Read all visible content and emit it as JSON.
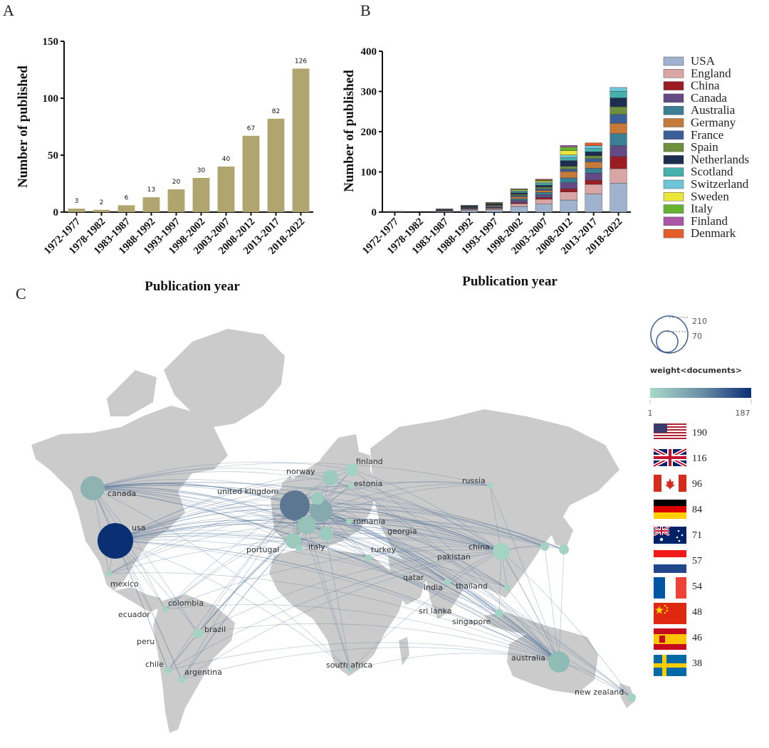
{
  "panels": {
    "a": "A",
    "b": "B",
    "c": "C"
  },
  "chart_data": [
    {
      "type": "bar",
      "panel": "A",
      "categories": [
        "1972-1977",
        "1978-1982",
        "1983-1987",
        "1988-1992",
        "1993-1997",
        "1998-2002",
        "2003-2007",
        "2008-2012",
        "2013-2017",
        "2018-2022"
      ],
      "values": [
        3,
        2,
        6,
        13,
        20,
        30,
        40,
        67,
        82,
        126
      ],
      "xlabel": "Publication year",
      "ylabel": "Number of published",
      "ylim": [
        0,
        150
      ],
      "yticks": [
        0,
        50,
        100,
        150
      ],
      "color": "#b0a56f",
      "grid": false
    },
    {
      "type": "bar",
      "stacked": true,
      "panel": "B",
      "categories": [
        "1972-1977",
        "1978-1982",
        "1983-1987",
        "1988-1992",
        "1993-1997",
        "1998-2002",
        "2003-2007",
        "2008-2012",
        "2013-2017",
        "2018-2022"
      ],
      "xlabel": "Publication year",
      "ylabel": "Number of published",
      "ylim": [
        0,
        400
      ],
      "yticks": [
        0,
        100,
        200,
        300,
        400
      ],
      "legend_position": "right",
      "series": [
        {
          "name": "USA",
          "color": "#9fb3cf",
          "values": [
            1,
            0,
            2,
            5,
            6,
            14,
            20,
            30,
            45,
            72
          ]
        },
        {
          "name": "England",
          "color": "#d9a5a5",
          "values": [
            0,
            0,
            1,
            2,
            3,
            7,
            12,
            20,
            24,
            36
          ]
        },
        {
          "name": "China",
          "color": "#9c1c24",
          "values": [
            0,
            0,
            0,
            0,
            1,
            2,
            4,
            8,
            10,
            30
          ]
        },
        {
          "name": "Canada",
          "color": "#634a85",
          "values": [
            1,
            0,
            1,
            2,
            2,
            6,
            7,
            15,
            18,
            27
          ]
        },
        {
          "name": "Australia",
          "color": "#3a7f96",
          "values": [
            0,
            0,
            1,
            1,
            2,
            4,
            6,
            12,
            12,
            30
          ]
        },
        {
          "name": "Germany",
          "color": "#c57a39",
          "values": [
            0,
            0,
            1,
            1,
            2,
            5,
            5,
            16,
            16,
            26
          ]
        },
        {
          "name": "France",
          "color": "#3d5f99",
          "values": [
            0,
            0,
            1,
            1,
            1,
            3,
            4,
            6,
            8,
            22
          ]
        },
        {
          "name": "Spain",
          "color": "#6e8f3e",
          "values": [
            0,
            0,
            0,
            1,
            1,
            3,
            4,
            7,
            7,
            19
          ]
        },
        {
          "name": "Netherlands",
          "color": "#1c2d4f",
          "values": [
            0,
            0,
            1,
            2,
            2,
            4,
            5,
            14,
            10,
            22
          ]
        },
        {
          "name": "Scotland",
          "color": "#45b1ad",
          "values": [
            0,
            0,
            0,
            1,
            1,
            3,
            4,
            7,
            8,
            16
          ]
        },
        {
          "name": "Switzerland",
          "color": "#6cc6d6",
          "values": [
            0,
            0,
            0,
            1,
            1,
            2,
            3,
            7,
            7,
            10
          ]
        },
        {
          "name": "Sweden",
          "color": "#ece53a",
          "values": [
            0,
            0,
            0,
            0,
            1,
            2,
            3,
            11,
            0,
            0
          ]
        },
        {
          "name": "Italy",
          "color": "#66b331",
          "values": [
            0,
            0,
            0,
            0,
            1,
            2,
            2,
            9,
            0,
            0
          ]
        },
        {
          "name": "Finland",
          "color": "#ab55a6",
          "values": [
            0,
            0,
            0,
            0,
            0,
            1,
            1,
            4,
            0,
            0
          ]
        },
        {
          "name": "Denmark",
          "color": "#e45d2a",
          "values": [
            0,
            0,
            0,
            0,
            0,
            0,
            2,
            0,
            7,
            0
          ]
        }
      ]
    }
  ],
  "map": {
    "legend": {
      "size_values": [
        "210",
        "70"
      ],
      "weight_title": "weight<documents>",
      "color_min": "1",
      "color_max": "187",
      "color_low": "#a9d9c9",
      "color_high": "#0a2f73"
    },
    "labels": {
      "canada": "canada",
      "usa": "usa",
      "mexico": "mexico",
      "colombia": "colombia",
      "ecuador": "ecuador",
      "brazil": "brazil",
      "peru": "peru",
      "chile": "chile",
      "argentina": "argentina",
      "norway": "norway",
      "finland": "finland",
      "estonia": "estonia",
      "uk": "united kingdom",
      "romania": "romania",
      "georgia": "georgia",
      "portugal": "portugal",
      "italy": "italy",
      "turkey": "turkey",
      "russia": "russia",
      "pakistan": "pakistan",
      "china": "china",
      "qatar": "qatar",
      "india": "india",
      "thailand": "thailand",
      "srilanka": "sri lanka",
      "singapore": "singapore",
      "southafrica": "south africa",
      "australia": "australia",
      "newzealand": "new zealand"
    },
    "flags": [
      {
        "country": "USA",
        "count": "190",
        "flag": "us-flag-icon"
      },
      {
        "country": "UK",
        "count": "116",
        "flag": "uk-flag-icon"
      },
      {
        "country": "Canada",
        "count": "96",
        "flag": "canada-flag-icon"
      },
      {
        "country": "Germany",
        "count": "84",
        "flag": "germany-flag-icon"
      },
      {
        "country": "Australia",
        "count": "71",
        "flag": "australia-flag-icon"
      },
      {
        "country": "Netherlands",
        "count": "57",
        "flag": "netherlands-flag-icon"
      },
      {
        "country": "France",
        "count": "54",
        "flag": "france-flag-icon"
      },
      {
        "country": "China",
        "count": "48",
        "flag": "china-flag-icon"
      },
      {
        "country": "Spain",
        "count": "46",
        "flag": "spain-flag-icon"
      },
      {
        "country": "Sweden",
        "count": "38",
        "flag": "sweden-flag-icon"
      }
    ]
  }
}
